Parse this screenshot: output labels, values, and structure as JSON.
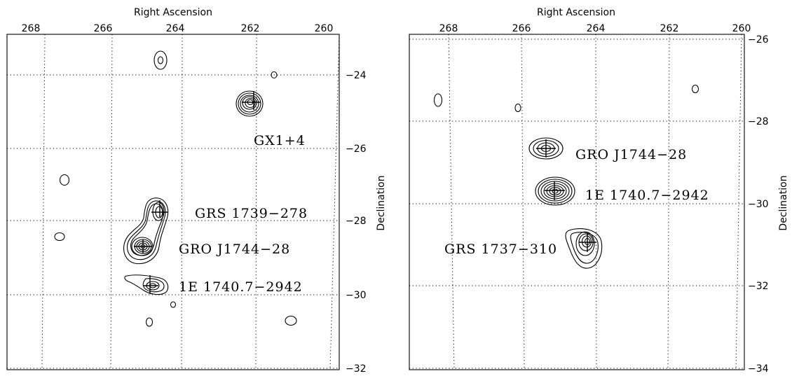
{
  "panels": [
    {
      "id": "left",
      "title": "Right Ascension",
      "ylabel": "Declination",
      "ra_ticks": [
        "268",
        "266",
        "264",
        "262",
        "260"
      ],
      "dec_ticks": [
        "-24",
        "-26",
        "-28",
        "-30",
        "-32"
      ],
      "sources": [
        {
          "name": "GX1+4",
          "label": "GX1+4"
        },
        {
          "name": "GRS 1739-278",
          "label": "GRS 1739−278"
        },
        {
          "name": "GRO J1744-28",
          "label": "GRO J1744−28"
        },
        {
          "name": "1E 1740.7-2942",
          "label": "1E 1740.7−2942"
        }
      ]
    },
    {
      "id": "right",
      "title": "Right Ascension",
      "ylabel": "Declination",
      "ra_ticks": [
        "268",
        "266",
        "264",
        "262",
        "260"
      ],
      "dec_ticks": [
        "-26",
        "-28",
        "-30",
        "-32",
        "-34"
      ],
      "sources": [
        {
          "name": "GRO J1744-28",
          "label": "GRO J1744−28"
        },
        {
          "name": "1E 1740.7-2942",
          "label": "1E 1740.7−2942"
        },
        {
          "name": "GRS 1737-310",
          "label": "GRS 1737−310"
        }
      ]
    }
  ]
}
